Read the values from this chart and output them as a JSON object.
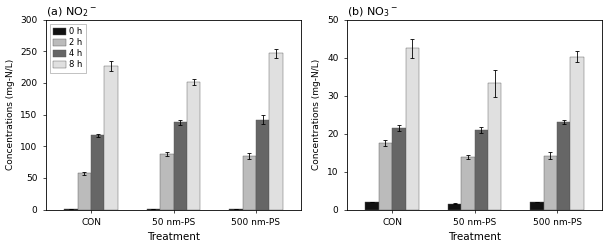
{
  "panel_a": {
    "title": "(a) NO$_2$$^-$",
    "groups": [
      "CON",
      "50 nm-PS",
      "500 nm-PS"
    ],
    "times": [
      "0 h",
      "2 h",
      "4 h",
      "8 h"
    ],
    "colors": [
      "#111111",
      "#bbbbbb",
      "#666666",
      "#e0e0e0"
    ],
    "values": [
      [
        0.5,
        57,
        117,
        226
      ],
      [
        0.5,
        88,
        138,
        201
      ],
      [
        0.5,
        85,
        142,
        247
      ]
    ],
    "errors": [
      [
        0.1,
        2,
        3,
        8
      ],
      [
        0.1,
        3,
        4,
        5
      ],
      [
        0.1,
        5,
        7,
        7
      ]
    ],
    "ylabel": "Concentrations (mg-N/L)",
    "xlabel": "Treatment",
    "ylim": [
      0,
      300
    ],
    "yticks": [
      0,
      50,
      100,
      150,
      200,
      250,
      300
    ]
  },
  "panel_b": {
    "title": "(b) NO$_3$$^-$",
    "groups": [
      "CON",
      "50 nm-PS",
      "500 nm-PS"
    ],
    "times": [
      "0 h",
      "2 h",
      "4 h",
      "8 h"
    ],
    "colors": [
      "#111111",
      "#bbbbbb",
      "#666666",
      "#e0e0e0"
    ],
    "values": [
      [
        2,
        17.5,
        21.5,
        42.5
      ],
      [
        1.5,
        13.8,
        21.0,
        33.2
      ],
      [
        2,
        14.2,
        23.0,
        40.2
      ]
    ],
    "errors": [
      [
        0.1,
        0.8,
        0.8,
        2.5
      ],
      [
        0.1,
        0.5,
        0.8,
        3.5
      ],
      [
        0.1,
        1.0,
        0.5,
        1.5
      ]
    ],
    "ylabel": "Concentrations (mg-N/L)",
    "xlabel": "Treatment",
    "ylim": [
      0,
      50
    ],
    "yticks": [
      0,
      10,
      20,
      30,
      40,
      50
    ]
  }
}
